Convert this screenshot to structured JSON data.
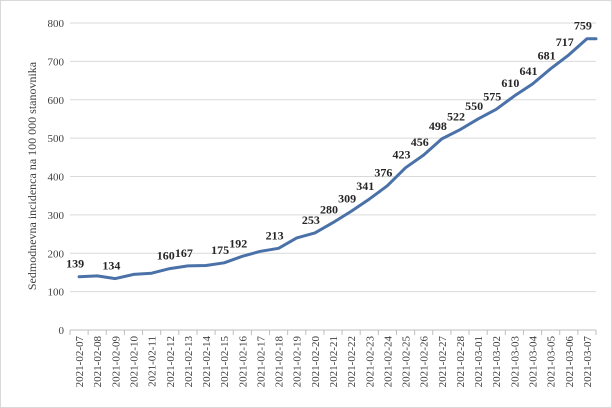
{
  "chart_data": {
    "type": "line",
    "title": "",
    "xlabel": "",
    "ylabel": "Sedmodnevna incidenca na 100 000 stanovnika",
    "ylim": [
      0,
      800
    ],
    "yticks": [
      0,
      100,
      200,
      300,
      400,
      500,
      600,
      700,
      800
    ],
    "grid": true,
    "legend": "none",
    "line_color": "#4a72a8",
    "categories": [
      "2021-02-07",
      "2021-02-08",
      "2021-02-09",
      "2021-02-10",
      "2021-02-11",
      "2021-02-12",
      "2021-02-13",
      "2021-02-14",
      "2021-02-15",
      "2021-02-16",
      "2021-02-17",
      "2021-02-18",
      "2021-02-19",
      "2021-02-20",
      "2021-02-21",
      "2021-02-22",
      "2021-02-23",
      "2021-02-24",
      "2021-02-25",
      "2021-02-26",
      "2021-02-27",
      "2021-02-28",
      "2021-03-01",
      "2021-03-02",
      "2021-03-03",
      "2021-03-04",
      "2021-03-05",
      "2021-03-06",
      "2021-03-07"
    ],
    "series": [
      {
        "values": [
          139,
          141,
          134,
          145,
          148,
          160,
          167,
          168,
          175,
          192,
          205,
          213,
          240,
          253,
          280,
          309,
          341,
          376,
          423,
          456,
          498,
          522,
          550,
          575,
          610,
          641,
          681,
          717,
          759
        ],
        "labels": [
          "139",
          "",
          "134",
          "",
          "",
          "160",
          "167",
          "",
          "175",
          "192",
          "",
          "213",
          "",
          "253",
          "280",
          "309",
          "341",
          "376",
          "423",
          "456",
          "498",
          "522",
          "550",
          "575",
          "610",
          "641",
          "681",
          "717",
          "759"
        ]
      }
    ]
  }
}
